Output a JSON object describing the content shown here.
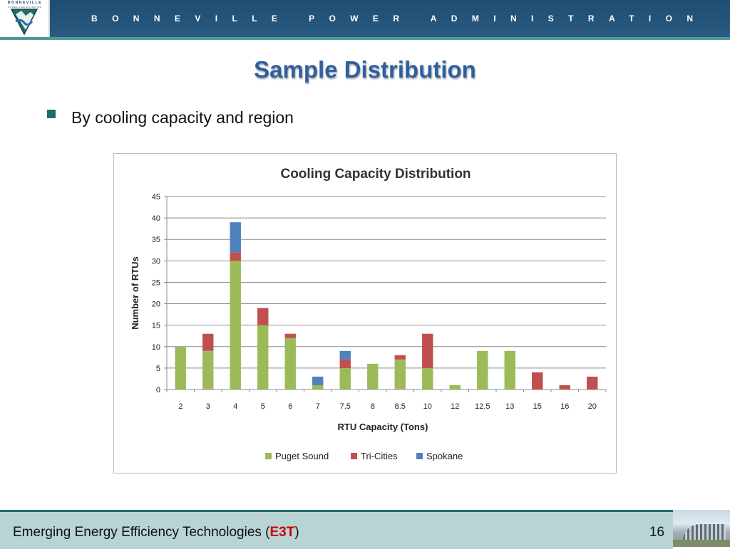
{
  "header": {
    "logo_title": "BONNEVILLE",
    "logo_subtitle": "POWER ADMINISTRATION",
    "title": "BONNEVILLE POWER ADMINISTRATION"
  },
  "slide": {
    "title": "Sample Distribution",
    "bullet": "By cooling capacity and region"
  },
  "footer": {
    "text_main": "Emerging Energy Efficiency Technologies",
    "paren_open": "(",
    "e3t": "E3T",
    "paren_close": ")",
    "page_number": "16"
  },
  "chart_data": {
    "type": "bar",
    "stacked": true,
    "title": "Cooling Capacity Distribution",
    "xlabel": "RTU Capacity (Tons)",
    "ylabel": "Number of RTUs",
    "ylim": [
      0,
      45
    ],
    "yticks": [
      0,
      5,
      10,
      15,
      20,
      25,
      30,
      35,
      40,
      45
    ],
    "grid": true,
    "legend": "bottom",
    "categories": [
      "2",
      "3",
      "4",
      "5",
      "6",
      "7",
      "7.5",
      "8",
      "8.5",
      "10",
      "12",
      "12.5",
      "13",
      "15",
      "16",
      "20"
    ],
    "series": [
      {
        "name": "Puget Sound",
        "color": "#9bbb59",
        "values": [
          10,
          9,
          30,
          15,
          12,
          1,
          5,
          6,
          7,
          5,
          1,
          9,
          9,
          0,
          0,
          0
        ]
      },
      {
        "name": "Tri-Cities",
        "color": "#c0504d",
        "values": [
          0,
          4,
          2,
          4,
          1,
          0,
          2,
          0,
          1,
          8,
          0,
          0,
          0,
          4,
          1,
          3
        ]
      },
      {
        "name": "Spokane",
        "color": "#4f81bd",
        "values": [
          0,
          0,
          7,
          0,
          0,
          2,
          2,
          0,
          0,
          0,
          0,
          0,
          0,
          0,
          0,
          0
        ]
      }
    ]
  }
}
